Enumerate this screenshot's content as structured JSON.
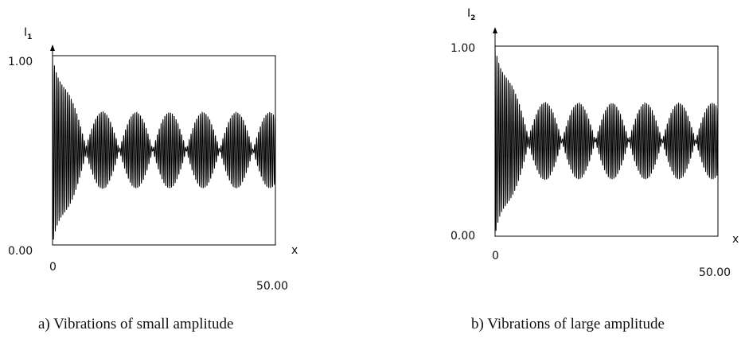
{
  "chart_data": [
    {
      "type": "line",
      "caption": "a) Vibrations of small amplitude",
      "ylabel": "I",
      "ylabel_sub": "1",
      "xlabel": "x",
      "ylim": [
        0.0,
        1.0
      ],
      "xlim": [
        0.0,
        50.0
      ],
      "y_ticks": [
        "0.00",
        "1.00"
      ],
      "x_ticks": [
        "0",
        "50.00"
      ],
      "series": [
        {
          "signal": "oscillation",
          "center": 0.5,
          "initial_amplitude": 0.5,
          "initial_decay": 0.45,
          "beat_amplitude": 0.2,
          "beat_period": 7.5,
          "carrier_period": 0.42
        }
      ]
    },
    {
      "type": "line",
      "caption": "b) Vibrations of large amplitude",
      "ylabel": "I",
      "ylabel_sub": "2",
      "xlabel": "x",
      "ylim": [
        0.0,
        1.0
      ],
      "xlim": [
        0.0,
        50.0
      ],
      "y_ticks": [
        "0.00",
        "1.00"
      ],
      "x_ticks": [
        "0",
        "50.00"
      ],
      "series": [
        {
          "signal": "oscillation",
          "center": 0.5,
          "initial_amplitude": 0.5,
          "initial_decay": 0.45,
          "beat_amplitude": 0.2,
          "beat_period": 7.5,
          "carrier_period": 0.42
        }
      ]
    }
  ]
}
